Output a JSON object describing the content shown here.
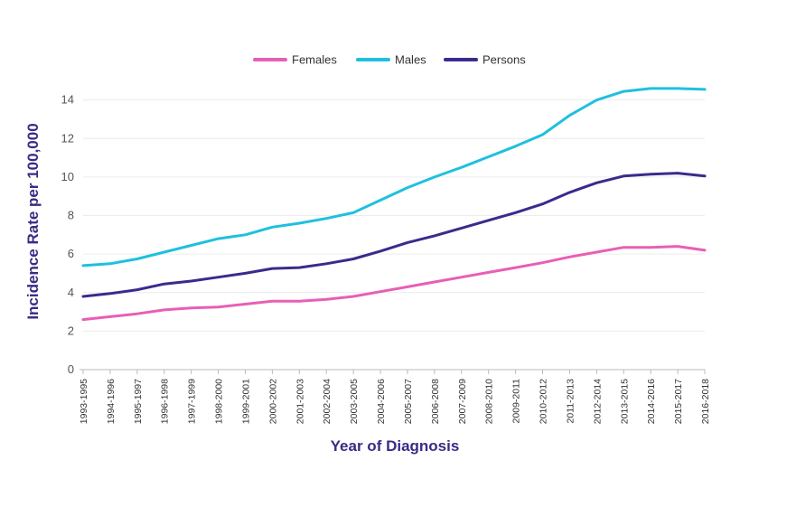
{
  "chart_data": {
    "type": "line",
    "title": "",
    "xlabel": "Year of Diagnosis",
    "ylabel": "Incidence Rate per 100,000",
    "ylim": [
      0,
      14
    ],
    "yticks": [
      0,
      2,
      4,
      6,
      8,
      10,
      12,
      14
    ],
    "grid": true,
    "legend_position": "top-center",
    "categories": [
      "1993-1995",
      "1994-1996",
      "1995-1997",
      "1996-1998",
      "1997-1999",
      "1998-2000",
      "1999-2001",
      "2000-2002",
      "2001-2003",
      "2002-2004",
      "2003-2005",
      "2004-2006",
      "2005-2007",
      "2006-2008",
      "2007-2009",
      "2008-2010",
      "2009-2011",
      "2010-2012",
      "2011-2013",
      "2012-2014",
      "2013-2015",
      "2014-2016",
      "2015-2017",
      "2016-2018"
    ],
    "series": [
      {
        "name": "Females",
        "color": "#e75fb6",
        "values": [
          2.6,
          2.75,
          2.9,
          3.1,
          3.2,
          3.25,
          3.4,
          3.55,
          3.55,
          3.65,
          3.8,
          4.05,
          4.3,
          4.55,
          4.8,
          5.05,
          5.3,
          5.55,
          5.85,
          6.1,
          6.35,
          6.35,
          6.4,
          6.2
        ]
      },
      {
        "name": "Males",
        "color": "#1fc0de",
        "values": [
          5.4,
          5.5,
          5.75,
          6.1,
          6.45,
          6.8,
          7.0,
          7.4,
          7.6,
          7.85,
          8.15,
          8.8,
          9.45,
          10.0,
          10.5,
          11.05,
          11.6,
          12.2,
          13.2,
          14.0,
          14.45,
          14.6,
          14.6,
          14.55
        ]
      },
      {
        "name": "Persons",
        "color": "#3c2a8c",
        "values": [
          3.8,
          3.95,
          4.15,
          4.45,
          4.6,
          4.8,
          5.0,
          5.25,
          5.3,
          5.5,
          5.75,
          6.15,
          6.6,
          6.95,
          7.35,
          7.75,
          8.15,
          8.6,
          9.2,
          9.7,
          10.05,
          10.15,
          10.2,
          10.05
        ]
      }
    ]
  }
}
